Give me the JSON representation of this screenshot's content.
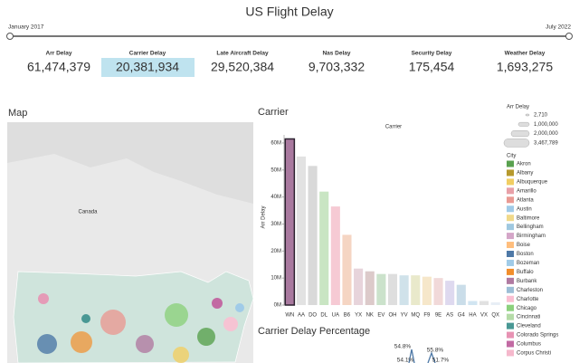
{
  "header": {
    "title": "US Flight Delay",
    "range_start": "January 2017",
    "range_end": "July 2022"
  },
  "kpis": [
    {
      "label": "Arr Delay",
      "value": "61,474,379"
    },
    {
      "label": "Carrier Delay",
      "value": "20,381,934"
    },
    {
      "label": "Late Aircraft Delay",
      "value": "29,520,384"
    },
    {
      "label": "Nas Delay",
      "value": "9,703,332"
    },
    {
      "label": "Security Delay",
      "value": "175,454"
    },
    {
      "label": "Weather Delay",
      "value": "1,693,275"
    }
  ],
  "map": {
    "title": "Map",
    "place_label": "Canada"
  },
  "chart_data": {
    "type": "bar",
    "title": "Carrier",
    "subtitle": "Carrier",
    "y_label": "Arr Delay",
    "categories": [
      "WN",
      "AA",
      "DO",
      "DL",
      "UA",
      "B6",
      "YX",
      "NK",
      "EV",
      "OH",
      "YV",
      "MQ",
      "F9",
      "9E",
      "AS",
      "G4",
      "HA",
      "VX",
      "QX"
    ],
    "values": [
      61500000,
      55000000,
      51500000,
      42000000,
      36500000,
      26000000,
      13500000,
      12500000,
      11500000,
      11500000,
      11000000,
      11000000,
      10500000,
      10000000,
      9000000,
      7500000,
      1500000,
      1500000,
      1000000
    ],
    "colors": [
      "#a9799f",
      "#e2e2e2",
      "#d9d9d9",
      "#c9e5c3",
      "#f6cad4",
      "#f5d5c3",
      "#e7d4db",
      "#dccaca",
      "#cbe2cb",
      "#dedede",
      "#d0e2ea",
      "#e9e9cb",
      "#f6e7ca",
      "#f1d9d9",
      "#ded9ef",
      "#cadde9",
      "#d1e5f1",
      "#e1e1e1",
      "#e7eef5"
    ],
    "highlight": "WN",
    "ylim": [
      0,
      63000000
    ],
    "yticks": [
      {
        "value": 0,
        "label": "0M"
      },
      {
        "value": 10000000,
        "label": "10M"
      },
      {
        "value": 20000000,
        "label": "20M"
      },
      {
        "value": 30000000,
        "label": "30M"
      },
      {
        "value": 40000000,
        "label": "40M"
      },
      {
        "value": 50000000,
        "label": "50M"
      },
      {
        "value": 60000000,
        "label": "60M"
      }
    ]
  },
  "pct_chart": {
    "title": "Carrier Delay Percentage",
    "labels": [
      "54.8%",
      "55.8%",
      "54.1%",
      "51.7%"
    ]
  },
  "size_legend": {
    "title": "Arr Delay",
    "labels": [
      "2,710",
      "1,000,000",
      "2,000,000",
      "3,467,789"
    ]
  },
  "color_legend": {
    "title": "City",
    "items": [
      {
        "name": "Akron",
        "color": "#59a14f"
      },
      {
        "name": "Albany",
        "color": "#b6992d"
      },
      {
        "name": "Albuquerque",
        "color": "#f1ce63"
      },
      {
        "name": "Amarillo",
        "color": "#e8a0a8"
      },
      {
        "name": "Atlanta",
        "color": "#e99a93"
      },
      {
        "name": "Austin",
        "color": "#a0cbe8"
      },
      {
        "name": "Baltimore",
        "color": "#f0d98a"
      },
      {
        "name": "Bellingham",
        "color": "#9fc8e0"
      },
      {
        "name": "Birmingham",
        "color": "#d4a6c8"
      },
      {
        "name": "Boise",
        "color": "#ffbe7d"
      },
      {
        "name": "Boston",
        "color": "#4e79a7"
      },
      {
        "name": "Bozeman",
        "color": "#a0cbe8"
      },
      {
        "name": "Buffalo",
        "color": "#f28e2b"
      },
      {
        "name": "Burbank",
        "color": "#b07aa1"
      },
      {
        "name": "Charleston",
        "color": "#9dbed6"
      },
      {
        "name": "Charlotte",
        "color": "#fabfd2"
      },
      {
        "name": "Chicago",
        "color": "#8cd17d"
      },
      {
        "name": "Cincinnati",
        "color": "#b5dba8"
      },
      {
        "name": "Cleveland",
        "color": "#499894"
      },
      {
        "name": "Colorado Springs",
        "color": "#e792b3"
      },
      {
        "name": "Columbus",
        "color": "#c26aa3"
      },
      {
        "name": "Corpus Christi",
        "color": "#f5b8cc"
      }
    ]
  }
}
